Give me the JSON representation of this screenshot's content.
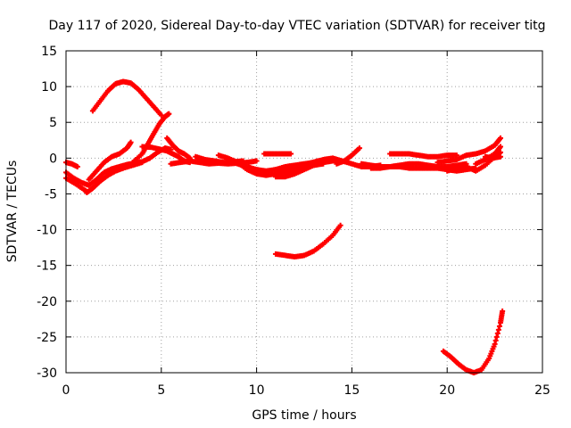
{
  "chart_data": {
    "type": "scatter",
    "title": "Day 117 of 2020, Sidereal Day-to-day VTEC variation (SDTVAR) for receiver titg",
    "xlabel": "GPS time / hours",
    "ylabel": "SDTVAR / TECUs",
    "xlim": [
      0,
      25
    ],
    "ylim": [
      -30,
      15
    ],
    "xticks": [
      "0",
      "5",
      "10",
      "15",
      "20",
      "25"
    ],
    "yticks": [
      "15",
      "10",
      "5",
      "0",
      "-5",
      "-10",
      "-15",
      "-20",
      "-25",
      "-30"
    ],
    "xtick_values": [
      0,
      5,
      10,
      15,
      20,
      25
    ],
    "ytick_values": [
      15,
      10,
      5,
      0,
      -5,
      -10,
      -15,
      -20,
      -25,
      -30
    ],
    "grid": true,
    "marker": "plus",
    "color": "#ff0000",
    "series": [
      {
        "points": [
          [
            0.0,
            -0.6
          ],
          [
            0.3,
            -0.8
          ],
          [
            0.6,
            -1.2
          ]
        ]
      },
      {
        "points": [
          [
            0.0,
            -2.0
          ],
          [
            0.4,
            -2.8
          ],
          [
            0.8,
            -3.4
          ],
          [
            1.2,
            -3.8
          ],
          [
            1.6,
            -3.0
          ],
          [
            2.0,
            -2.0
          ],
          [
            2.4,
            -1.5
          ],
          [
            2.8,
            -1.2
          ],
          [
            3.2,
            -0.9
          ],
          [
            3.6,
            -0.7
          ],
          [
            4.0,
            -0.5
          ],
          [
            4.4,
            0.0
          ],
          [
            4.8,
            0.8
          ],
          [
            5.2,
            1.4
          ],
          [
            5.5,
            1.2
          ]
        ]
      },
      {
        "points": [
          [
            0.0,
            -2.8
          ],
          [
            0.5,
            -3.6
          ],
          [
            1.0,
            -4.5
          ],
          [
            1.1,
            -4.8
          ],
          [
            1.4,
            -4.2
          ],
          [
            1.8,
            -3.2
          ],
          [
            2.2,
            -2.4
          ],
          [
            2.6,
            -1.8
          ],
          [
            3.0,
            -1.4
          ],
          [
            3.5,
            -1.0
          ],
          [
            4.0,
            -0.6
          ]
        ]
      },
      {
        "points": [
          [
            1.2,
            -3.0
          ],
          [
            1.6,
            -1.8
          ],
          [
            2.0,
            -0.6
          ],
          [
            2.4,
            0.2
          ],
          [
            2.8,
            0.6
          ],
          [
            3.2,
            1.4
          ],
          [
            3.4,
            2.2
          ]
        ]
      },
      {
        "points": [
          [
            1.4,
            6.6
          ],
          [
            1.8,
            8.0
          ],
          [
            2.2,
            9.4
          ],
          [
            2.6,
            10.4
          ],
          [
            3.0,
            10.7
          ],
          [
            3.4,
            10.5
          ],
          [
            3.8,
            9.6
          ],
          [
            4.2,
            8.4
          ],
          [
            4.6,
            7.2
          ],
          [
            5.0,
            6.0
          ]
        ]
      },
      {
        "points": [
          [
            3.5,
            -0.6
          ],
          [
            4.0,
            0.6
          ],
          [
            4.3,
            2.0
          ],
          [
            4.6,
            3.4
          ],
          [
            4.9,
            4.8
          ],
          [
            5.2,
            5.8
          ],
          [
            5.4,
            6.2
          ]
        ]
      },
      {
        "points": [
          [
            4.0,
            1.6
          ],
          [
            4.5,
            1.5
          ],
          [
            5.0,
            1.2
          ],
          [
            5.3,
            1.0
          ],
          [
            5.6,
            0.6
          ],
          [
            5.9,
            0.2
          ],
          [
            6.2,
            -0.4
          ],
          [
            6.5,
            -0.6
          ]
        ]
      },
      {
        "points": [
          [
            5.3,
            2.8
          ],
          [
            5.6,
            1.8
          ],
          [
            5.9,
            1.0
          ],
          [
            6.2,
            0.6
          ],
          [
            6.5,
            0.0
          ]
        ]
      },
      {
        "points": [
          [
            5.5,
            -0.8
          ],
          [
            6.0,
            -0.6
          ],
          [
            6.5,
            -0.4
          ],
          [
            7.0,
            -0.6
          ],
          [
            7.5,
            -0.8
          ],
          [
            8.0,
            -0.7
          ],
          [
            8.5,
            -0.8
          ],
          [
            9.0,
            -0.7
          ],
          [
            9.5,
            -0.6
          ],
          [
            10.0,
            -0.4
          ]
        ]
      },
      {
        "points": [
          [
            6.8,
            0.2
          ],
          [
            7.3,
            -0.2
          ],
          [
            7.8,
            -0.4
          ],
          [
            8.3,
            -0.6
          ],
          [
            8.8,
            -0.5
          ],
          [
            9.3,
            -0.4
          ]
        ]
      },
      {
        "points": [
          [
            8.0,
            0.4
          ],
          [
            8.5,
            0.0
          ],
          [
            9.0,
            -0.6
          ],
          [
            9.5,
            -1.6
          ],
          [
            10.0,
            -2.2
          ],
          [
            10.5,
            -2.4
          ],
          [
            11.0,
            -2.2
          ],
          [
            11.5,
            -2.0
          ],
          [
            12.0,
            -1.8
          ],
          [
            12.5,
            -1.4
          ],
          [
            13.0,
            -1.0
          ],
          [
            13.5,
            -0.8
          ]
        ]
      },
      {
        "points": [
          [
            9.0,
            -0.8
          ],
          [
            9.5,
            -1.2
          ],
          [
            10.0,
            -1.6
          ],
          [
            10.5,
            -1.8
          ],
          [
            11.0,
            -1.6
          ],
          [
            11.5,
            -1.2
          ],
          [
            12.0,
            -1.0
          ],
          [
            12.5,
            -0.8
          ],
          [
            13.0,
            -0.6
          ]
        ]
      },
      {
        "points": [
          [
            10.4,
            0.6
          ],
          [
            10.9,
            0.6
          ],
          [
            11.4,
            0.6
          ],
          [
            11.8,
            0.6
          ]
        ]
      },
      {
        "points": [
          [
            11.0,
            -2.6
          ],
          [
            11.5,
            -2.6
          ],
          [
            12.0,
            -2.2
          ],
          [
            12.5,
            -1.6
          ],
          [
            13.0,
            -1.0
          ],
          [
            13.5,
            -0.6
          ],
          [
            14.0,
            -0.4
          ]
        ]
      },
      {
        "points": [
          [
            11.2,
            -2.0
          ],
          [
            11.7,
            -1.6
          ],
          [
            12.2,
            -1.2
          ],
          [
            12.7,
            -0.8
          ],
          [
            13.2,
            -0.4
          ],
          [
            13.7,
            -0.2
          ],
          [
            14.2,
            -0.4
          ]
        ]
      },
      {
        "points": [
          [
            12.5,
            -1.2
          ],
          [
            13.0,
            -0.6
          ],
          [
            13.5,
            -0.2
          ],
          [
            14.0,
            0.0
          ],
          [
            14.5,
            -0.4
          ],
          [
            15.0,
            -0.8
          ],
          [
            15.5,
            -1.2
          ],
          [
            16.0,
            -1.2
          ],
          [
            16.5,
            -1.0
          ]
        ]
      },
      {
        "points": [
          [
            14.2,
            -0.8
          ],
          [
            14.6,
            -0.4
          ],
          [
            15.0,
            0.4
          ],
          [
            15.4,
            1.4
          ]
        ]
      },
      {
        "points": [
          [
            15.5,
            -0.8
          ],
          [
            16.0,
            -1.0
          ],
          [
            16.5,
            -1.2
          ],
          [
            17.0,
            -1.2
          ],
          [
            17.5,
            -1.0
          ],
          [
            18.0,
            -0.8
          ],
          [
            18.5,
            -0.8
          ],
          [
            19.0,
            -1.0
          ],
          [
            19.5,
            -1.2
          ],
          [
            20.0,
            -1.2
          ],
          [
            20.5,
            -1.0
          ],
          [
            21.0,
            -0.8
          ]
        ]
      },
      {
        "points": [
          [
            16.0,
            -1.4
          ],
          [
            16.5,
            -1.4
          ],
          [
            17.0,
            -1.2
          ],
          [
            17.5,
            -1.2
          ],
          [
            18.0,
            -1.4
          ],
          [
            18.5,
            -1.4
          ],
          [
            19.0,
            -1.4
          ],
          [
            19.5,
            -1.4
          ],
          [
            20.0,
            -1.6
          ],
          [
            20.5,
            -1.8
          ],
          [
            21.0,
            -1.6
          ],
          [
            21.5,
            -1.4
          ]
        ]
      },
      {
        "points": [
          [
            17.0,
            0.6
          ],
          [
            17.5,
            0.6
          ],
          [
            18.0,
            0.6
          ],
          [
            18.5,
            0.4
          ],
          [
            19.0,
            0.2
          ],
          [
            19.5,
            0.2
          ],
          [
            20.0,
            0.4
          ],
          [
            20.5,
            0.4
          ]
        ]
      },
      {
        "points": [
          [
            19.5,
            -0.6
          ],
          [
            20.0,
            -0.4
          ],
          [
            20.5,
            -0.2
          ],
          [
            21.0,
            0.4
          ],
          [
            21.5,
            0.6
          ],
          [
            22.0,
            1.0
          ],
          [
            22.5,
            1.8
          ],
          [
            22.8,
            2.8
          ]
        ]
      },
      {
        "points": [
          [
            20.0,
            -1.8
          ],
          [
            20.5,
            -1.4
          ],
          [
            21.0,
            -1.2
          ],
          [
            21.5,
            -1.8
          ],
          [
            22.0,
            -1.0
          ],
          [
            22.5,
            0.2
          ],
          [
            22.8,
            0.8
          ]
        ]
      },
      {
        "points": [
          [
            21.5,
            -0.8
          ],
          [
            22.0,
            -0.2
          ],
          [
            22.5,
            0.6
          ],
          [
            22.8,
            1.6
          ]
        ]
      },
      {
        "points": [
          [
            22.0,
            0.2
          ],
          [
            22.4,
            0.0
          ],
          [
            22.8,
            0.2
          ]
        ]
      },
      {
        "points": [
          [
            11.0,
            -13.4
          ],
          [
            11.5,
            -13.6
          ],
          [
            12.0,
            -13.8
          ],
          [
            12.5,
            -13.6
          ],
          [
            13.0,
            -13.0
          ],
          [
            13.5,
            -12.0
          ],
          [
            14.0,
            -10.8
          ],
          [
            14.4,
            -9.4
          ]
        ]
      },
      {
        "points": [
          [
            19.8,
            -27.0
          ],
          [
            20.2,
            -27.8
          ],
          [
            20.6,
            -28.8
          ],
          [
            21.0,
            -29.6
          ],
          [
            21.4,
            -30.0
          ],
          [
            21.8,
            -29.6
          ],
          [
            22.2,
            -28.0
          ],
          [
            22.5,
            -26.0
          ],
          [
            22.8,
            -23.0
          ],
          [
            22.9,
            -21.4
          ]
        ]
      }
    ]
  }
}
